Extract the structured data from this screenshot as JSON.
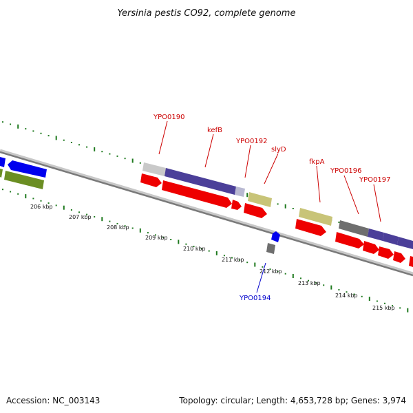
{
  "title": "Yersinia pestis CO92, complete genome",
  "footer": {
    "accession": "Accession: NC_003143",
    "summary": "Topology: circular; Length: 4,653,728 bp; Genes: 3,974"
  },
  "colors": {
    "backbone": "#7a7a7a",
    "backbone_light": "#c8c8c8",
    "tick_green": "#1f7a1f",
    "label_red": "#cc0000",
    "label_blue": "#0000cc",
    "gene_red": "#ee0000",
    "gene_blue": "#0000ee",
    "gene_olive": "#6b8e23",
    "gene_purple": "#4b3f99",
    "gene_gray": "#6e6e6e",
    "gene_lightgray": "#c9c9c9",
    "gene_lavender": "#b9b9d2",
    "gene_khaki": "#c8c478"
  },
  "ticks": {
    "labels": [
      "206 kbp",
      "207 kbp",
      "208 kbp",
      "209 kbp",
      "210 kbp",
      "211 kbp",
      "212 kbp",
      "213 kbp",
      "214 kbp",
      "215 kbp"
    ]
  },
  "genes": [
    {
      "name": "YPO0190",
      "color": "label_red"
    },
    {
      "name": "kefB",
      "color": "label_red"
    },
    {
      "name": "YPO0192",
      "color": "label_red"
    },
    {
      "name": "slyD",
      "color": "label_red"
    },
    {
      "name": "fkpA",
      "color": "label_red"
    },
    {
      "name": "YPO0196",
      "color": "label_red"
    },
    {
      "name": "YPO0197",
      "color": "label_red"
    },
    {
      "name": "YPO0194",
      "color": "label_blue"
    }
  ]
}
